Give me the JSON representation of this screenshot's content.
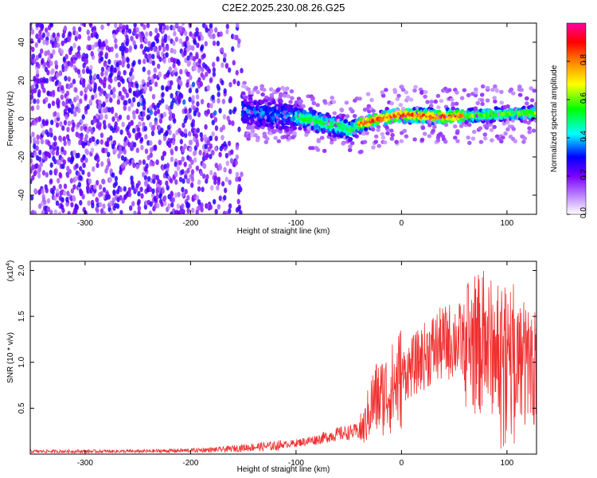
{
  "figure": {
    "title": "C2E2.2025.230.08.26.G25"
  },
  "chart_data": [
    {
      "type": "heatmap",
      "panel": "spectrogram",
      "xlabel": "Height of straight line (km)",
      "ylabel": "Frequency (Hz)",
      "xlim": [
        -352,
        128
      ],
      "ylim": [
        -50,
        50
      ],
      "x_ticks": [
        -300,
        -200,
        -100,
        0,
        100
      ],
      "y_ticks": [
        -40,
        -20,
        0,
        20,
        40
      ],
      "grid": false,
      "colorbar": {
        "label": "Normalized spectral amplitude",
        "range": [
          0.0,
          1.0
        ],
        "ticks": [
          0.0,
          0.2,
          0.4,
          0.6,
          0.8
        ],
        "tick_labels": [
          "0.0",
          "0.2",
          "0.4",
          "0.6",
          "0.8"
        ],
        "colormap": [
          "#ffffff",
          "#c89bff",
          "#7b00ff",
          "#0000ff",
          "#00ffff",
          "#00ff00",
          "#ffff00",
          "#ff8000",
          "#ff0000",
          "#ff00a0"
        ]
      },
      "ridge": {
        "description_points_x": [
          -200,
          -150,
          -100,
          -60,
          -48,
          -40,
          -20,
          0,
          40,
          80,
          128
        ],
        "description_points_y": [
          8,
          4,
          1,
          -4,
          -6,
          -3,
          0,
          2,
          1,
          2,
          3
        ]
      }
    },
    {
      "type": "line",
      "panel": "snr",
      "xlabel": "Height of straight line (km)",
      "ylabel": "SNR (10 * v/v)",
      "y_multiplier": "(x10^4)",
      "y_multiplier_base": "(x10",
      "y_multiplier_exp": "4",
      "y_multiplier_close": ")",
      "xlim": [
        -352,
        128
      ],
      "ylim": [
        0,
        2.1
      ],
      "x_ticks": [
        -300,
        -200,
        -100,
        0,
        100
      ],
      "y_ticks": [
        0.5,
        1.0,
        1.5,
        2.0
      ],
      "y_tick_labels": [
        "0.5",
        "1.0",
        "1.5",
        "2.0"
      ],
      "series": [
        {
          "color": "#f03030",
          "x": [
            -352,
            -300,
            -250,
            -200,
            -170,
            -150,
            -120,
            -100,
            -80,
            -60,
            -40,
            -35,
            -30,
            -25,
            -20,
            -10,
            0,
            10,
            20,
            30,
            40,
            50,
            60,
            70,
            80,
            90,
            100,
            110,
            120,
            128
          ],
          "y": [
            0.03,
            0.03,
            0.03,
            0.04,
            0.05,
            0.07,
            0.09,
            0.12,
            0.16,
            0.22,
            0.25,
            0.3,
            0.5,
            0.6,
            0.62,
            0.7,
            0.85,
            0.95,
            1.05,
            1.15,
            1.2,
            1.25,
            1.22,
            1.2,
            1.18,
            1.15,
            1.1,
            1.05,
            1.0,
            0.98
          ]
        }
      ]
    }
  ]
}
